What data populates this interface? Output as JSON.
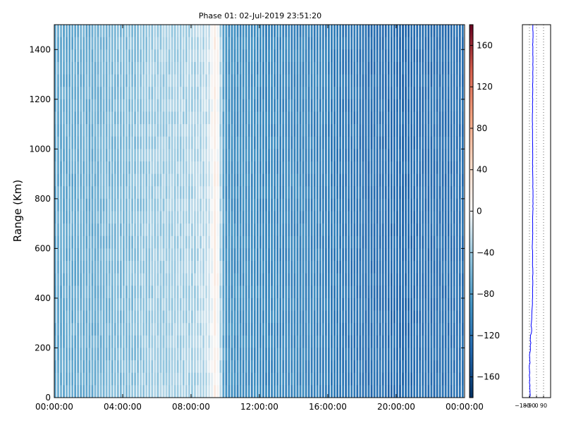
{
  "chart_data": [
    {
      "type": "heatmap",
      "title": "Phase 01: 02-Jul-2019 23:51:20",
      "xlabel": "",
      "ylabel": "Range (Km)",
      "xlim": [
        "00:00:00",
        "24:00:00"
      ],
      "ylim": [
        0,
        1500
      ],
      "x_tick_labels": [
        "00:00:00",
        "04:00:00",
        "08:00:00",
        "12:00:00",
        "16:00:00",
        "20:00:00",
        "00:00:00"
      ],
      "y_ticks": [
        0,
        200,
        400,
        600,
        800,
        1000,
        1200,
        1400
      ],
      "colormap": "RdBu_r",
      "colorbar": {
        "range": [
          -180,
          180
        ],
        "ticks": [
          -160,
          -120,
          -80,
          -40,
          0,
          40,
          80,
          120,
          160
        ]
      },
      "time_profile_hours": [
        0,
        2,
        4,
        6,
        8,
        9,
        9.5,
        9.8,
        10,
        12,
        14,
        16,
        18,
        20,
        22,
        24
      ],
      "time_profile_phase_deg": [
        -70,
        -68,
        -55,
        -40,
        -35,
        -25,
        25,
        -45,
        -95,
        -100,
        -105,
        -110,
        -125,
        -130,
        -128,
        -125
      ]
    },
    {
      "type": "line",
      "title": "",
      "xlabel": "",
      "ylabel": "",
      "xlim": [
        -180,
        180
      ],
      "ylim": [
        0,
        1500
      ],
      "x_tick_labels": [
        "−180",
        "−90",
        "0",
        "90"
      ],
      "x_ticks": [
        -180,
        -90,
        0,
        90
      ],
      "profile_range_km": [
        0,
        100,
        200,
        260,
        320,
        400,
        500,
        600,
        700,
        800,
        900,
        1000,
        1100,
        1200,
        1300,
        1400,
        1500
      ],
      "profile_phase_deg": [
        -85,
        -88,
        -82,
        -70,
        -60,
        -50,
        -48,
        -52,
        -48,
        -45,
        -50,
        -48,
        -52,
        -50,
        -46,
        -48,
        -45
      ],
      "line_color": "#0000ff"
    }
  ]
}
